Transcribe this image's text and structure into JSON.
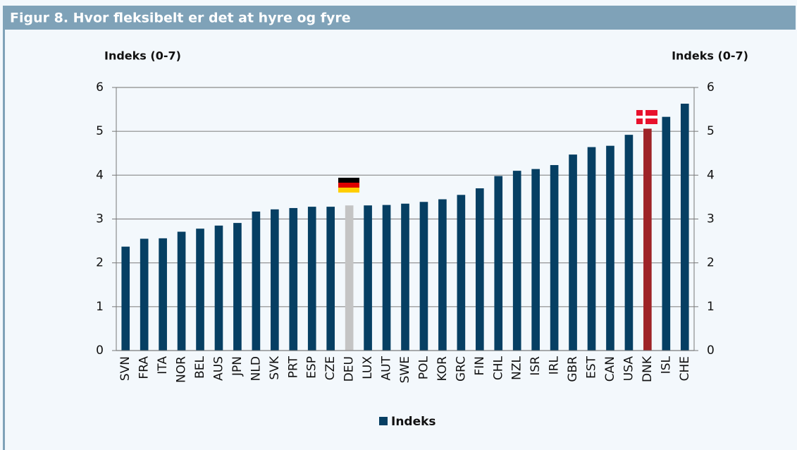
{
  "chart_data": {
    "type": "bar",
    "title": "Figur 8. Hvor fleksibelt er det at hyre og fyre",
    "y_label": "Indeks (0-7)",
    "y2_label": "Indeks (0-7)",
    "categories": [
      "SVN",
      "FRA",
      "ITA",
      "NOR",
      "BEL",
      "AUS",
      "JPN",
      "NLD",
      "SVK",
      "PRT",
      "ESP",
      "CZE",
      "DEU",
      "LUX",
      "AUT",
      "SWE",
      "POL",
      "KOR",
      "GRC",
      "FIN",
      "CHL",
      "NZL",
      "ISR",
      "IRL",
      "GBR",
      "EST",
      "CAN",
      "USA",
      "DNK",
      "ISL",
      "CHE"
    ],
    "series": [
      {
        "name": "Indeks",
        "color": "#063f63",
        "values": [
          2.37,
          2.55,
          2.56,
          2.71,
          2.78,
          2.85,
          2.91,
          3.17,
          3.22,
          3.25,
          3.28,
          3.28,
          3.31,
          3.31,
          3.32,
          3.35,
          3.39,
          3.45,
          3.55,
          3.7,
          3.98,
          4.1,
          4.14,
          4.23,
          4.47,
          4.64,
          4.67,
          4.92,
          5.06,
          5.33,
          5.63
        ],
        "colors": [
          "#063f63",
          "#063f63",
          "#063f63",
          "#063f63",
          "#063f63",
          "#063f63",
          "#063f63",
          "#063f63",
          "#063f63",
          "#063f63",
          "#063f63",
          "#063f63",
          "#c4c4c4",
          "#063f63",
          "#063f63",
          "#063f63",
          "#063f63",
          "#063f63",
          "#063f63",
          "#063f63",
          "#063f63",
          "#063f63",
          "#063f63",
          "#063f63",
          "#063f63",
          "#063f63",
          "#063f63",
          "#063f63",
          "#9e2327",
          "#063f63",
          "#063f63"
        ]
      }
    ],
    "ylim": [
      0,
      6
    ],
    "yticks": [
      0,
      1,
      2,
      3,
      4,
      5,
      6
    ],
    "y2lim": [
      0,
      6
    ],
    "y2ticks": [
      0,
      1,
      2,
      3,
      4,
      5,
      6
    ],
    "grid": true,
    "legend": "bottom"
  }
}
